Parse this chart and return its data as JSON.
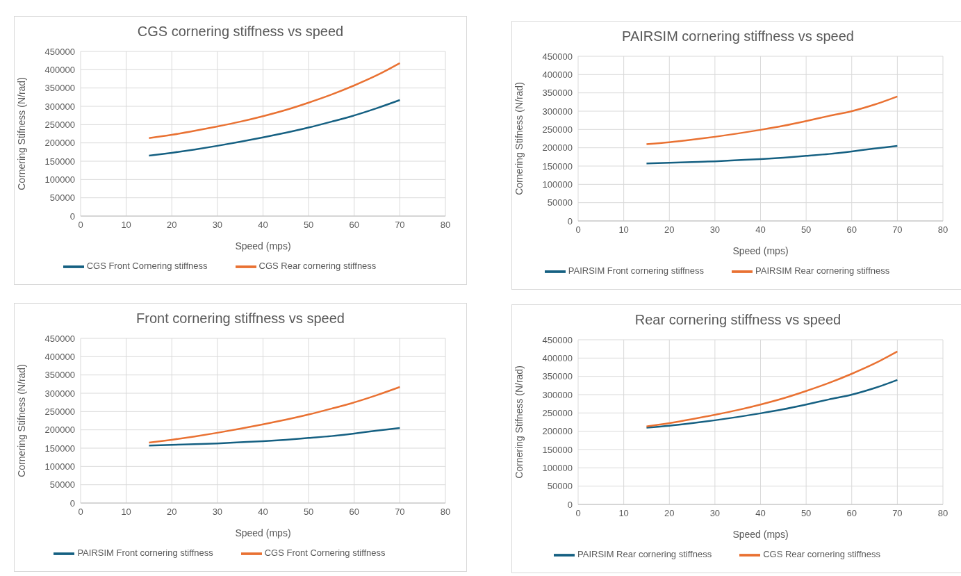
{
  "chart_data": [
    {
      "type": "line",
      "title": "CGS cornering stiffness vs speed",
      "xlabel": "Speed (mps)",
      "ylabel": "Cornering Stifness (N/rad)",
      "x": [
        15,
        20,
        25,
        30,
        35,
        40,
        45,
        50,
        55,
        60,
        65,
        70
      ],
      "xlim": [
        0,
        80
      ],
      "xticks": [
        0,
        10,
        20,
        30,
        40,
        50,
        60,
        70,
        80
      ],
      "ylim": [
        0,
        450000
      ],
      "yticks": [
        0,
        50000,
        100000,
        150000,
        200000,
        250000,
        300000,
        350000,
        400000,
        450000
      ],
      "grid": true,
      "legend": "bottom",
      "marker": "none",
      "series": [
        {
          "name": "CGS Front Cornering stiffness",
          "color": "#156082",
          "values": [
            165000,
            173000,
            182000,
            192000,
            203000,
            215000,
            228000,
            242000,
            258000,
            275000,
            295000,
            317000
          ]
        },
        {
          "name": "CGS Rear cornering stiffness",
          "color": "#e97132",
          "values": [
            213000,
            222000,
            233000,
            245000,
            258000,
            273000,
            290000,
            310000,
            332000,
            357000,
            385000,
            418000
          ]
        }
      ]
    },
    {
      "type": "line",
      "title": "PAIRSIM cornering stiffness vs speed",
      "xlabel": "Speed (mps)",
      "ylabel": "Cornering Stifness (N/rad)",
      "x": [
        15,
        20,
        25,
        30,
        35,
        40,
        45,
        50,
        55,
        60,
        65,
        70
      ],
      "xlim": [
        0,
        80
      ],
      "xticks": [
        0,
        10,
        20,
        30,
        40,
        50,
        60,
        70,
        80
      ],
      "ylim": [
        0,
        450000
      ],
      "yticks": [
        0,
        50000,
        100000,
        150000,
        200000,
        250000,
        300000,
        350000,
        400000,
        450000
      ],
      "grid": true,
      "legend": "bottom",
      "marker": "none",
      "series": [
        {
          "name": "PAIRSIM Front cornering stiffness",
          "color": "#156082",
          "values": [
            157000,
            159000,
            161000,
            163000,
            166000,
            169000,
            173000,
            178000,
            183000,
            190000,
            198000,
            205000
          ]
        },
        {
          "name": "PAIRSIM Rear cornering stiffness",
          "color": "#e97132",
          "values": [
            210000,
            215000,
            222000,
            230000,
            239000,
            249000,
            260000,
            273000,
            287000,
            300000,
            318000,
            340000
          ]
        }
      ]
    },
    {
      "type": "line",
      "title": "Front cornering stiffness vs speed",
      "xlabel": "Speed (mps)",
      "ylabel": "Cornering Stifness (N/rad)",
      "x": [
        15,
        20,
        25,
        30,
        35,
        40,
        45,
        50,
        55,
        60,
        65,
        70
      ],
      "xlim": [
        0,
        80
      ],
      "xticks": [
        0,
        10,
        20,
        30,
        40,
        50,
        60,
        70,
        80
      ],
      "ylim": [
        0,
        450000
      ],
      "yticks": [
        0,
        50000,
        100000,
        150000,
        200000,
        250000,
        300000,
        350000,
        400000,
        450000
      ],
      "grid": true,
      "legend": "bottom",
      "marker": "none",
      "series": [
        {
          "name": "PAIRSIM Front cornering stiffness",
          "color": "#156082",
          "values": [
            157000,
            159000,
            161000,
            163000,
            166000,
            169000,
            173000,
            178000,
            183000,
            190000,
            198000,
            205000
          ]
        },
        {
          "name": "CGS Front Cornering stiffness",
          "color": "#e97132",
          "values": [
            165000,
            173000,
            182000,
            192000,
            203000,
            215000,
            228000,
            242000,
            258000,
            275000,
            295000,
            317000
          ]
        }
      ]
    },
    {
      "type": "line",
      "title": "Rear cornering stiffness vs speed",
      "xlabel": "Speed (mps)",
      "ylabel": "Cornering Stifness (N/rad)",
      "x": [
        15,
        20,
        25,
        30,
        35,
        40,
        45,
        50,
        55,
        60,
        65,
        70
      ],
      "xlim": [
        0,
        80
      ],
      "xticks": [
        0,
        10,
        20,
        30,
        40,
        50,
        60,
        70,
        80
      ],
      "ylim": [
        0,
        450000
      ],
      "yticks": [
        0,
        50000,
        100000,
        150000,
        200000,
        250000,
        300000,
        350000,
        400000,
        450000
      ],
      "grid": true,
      "legend": "bottom",
      "marker": "none",
      "series": [
        {
          "name": "PAIRSIM Rear cornering stiffness",
          "color": "#156082",
          "values": [
            210000,
            215000,
            222000,
            230000,
            239000,
            249000,
            260000,
            273000,
            287000,
            300000,
            318000,
            340000
          ]
        },
        {
          "name": "CGS Rear cornering stiffness",
          "color": "#e97132",
          "values": [
            213000,
            222000,
            233000,
            245000,
            258000,
            273000,
            290000,
            310000,
            332000,
            357000,
            385000,
            418000
          ]
        }
      ]
    }
  ]
}
